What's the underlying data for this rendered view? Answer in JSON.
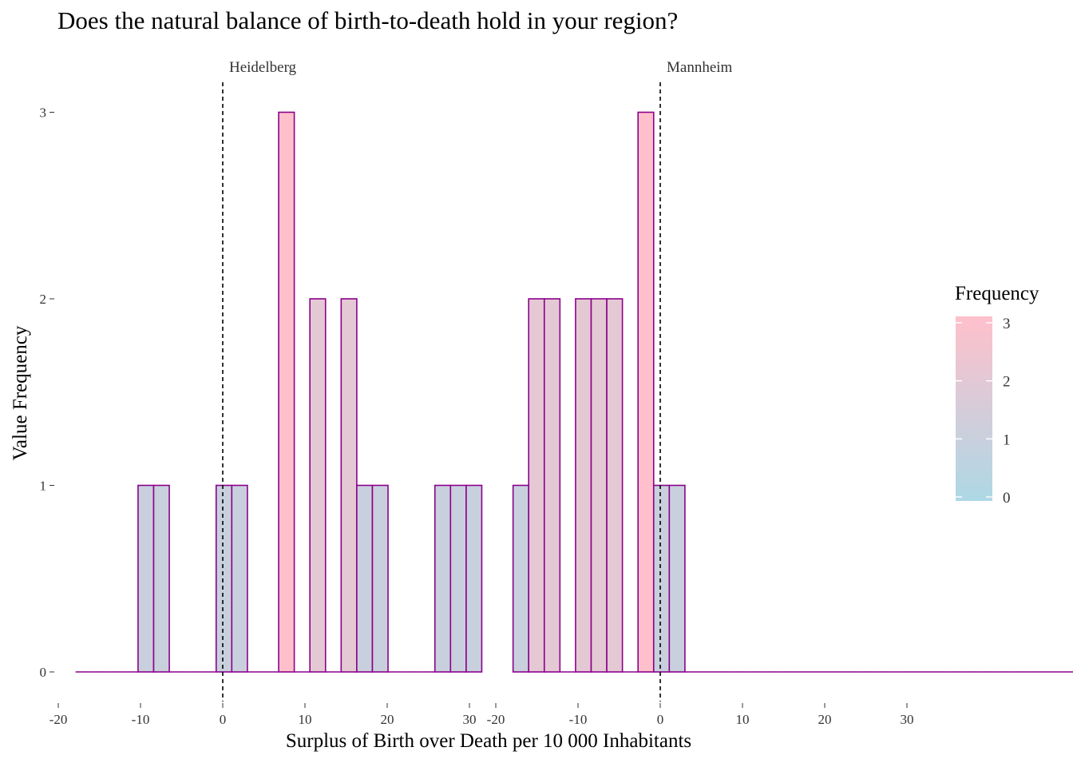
{
  "chart_data": {
    "type": "bar",
    "title": "Does the natural balance of birth-to-death hold in your region?",
    "xlabel": "Surplus of Birth over Death per 10 000 Inhabitants",
    "ylabel": "Value Frequency",
    "ylim": [
      0,
      3
    ],
    "y_ticks": [
      "0",
      "1",
      "2",
      "3"
    ],
    "legend": {
      "title": "Frequency",
      "type": "colorbar",
      "placement": "right",
      "ticks": [
        "0",
        "1",
        "2",
        "3"
      ],
      "color_low": "#ADD8E6",
      "color_high": "#FFC0CB"
    },
    "bar_outline_color": "#8B008B",
    "panels": [
      {
        "name": "Heidelberg",
        "x_ticks": [
          "-20",
          "-10",
          "0",
          "10",
          "20",
          "30"
        ],
        "xlim": [
          -20,
          30
        ],
        "binwidth": 1.9,
        "bin_start": -17.9,
        "counts": [
          0,
          0,
          0,
          0,
          1,
          1,
          0,
          0,
          0,
          1,
          1,
          0,
          0,
          3,
          0,
          2,
          0,
          2,
          1,
          1,
          0,
          0,
          0,
          1,
          1,
          1
        ],
        "vline": 0
      },
      {
        "name": "Mannheim",
        "x_ticks": [
          "-20",
          "-10",
          "0",
          "10",
          "20",
          "30"
        ],
        "xlim": [
          -20,
          30
        ],
        "binwidth": 1.9,
        "bin_start": -17.9,
        "counts": [
          1,
          2,
          2,
          0,
          2,
          2,
          2,
          0,
          3,
          1,
          1,
          0,
          0,
          0,
          0,
          0,
          0,
          0,
          0,
          0,
          0,
          0,
          0,
          0,
          0,
          0,
          0,
          0,
          0,
          0,
          0,
          0,
          0,
          0,
          0,
          0,
          0,
          0,
          0,
          0,
          0,
          0,
          0,
          0,
          0,
          0,
          0,
          0,
          0,
          0,
          0,
          0,
          0,
          0,
          0,
          0
        ],
        "vline": 0
      }
    ]
  }
}
